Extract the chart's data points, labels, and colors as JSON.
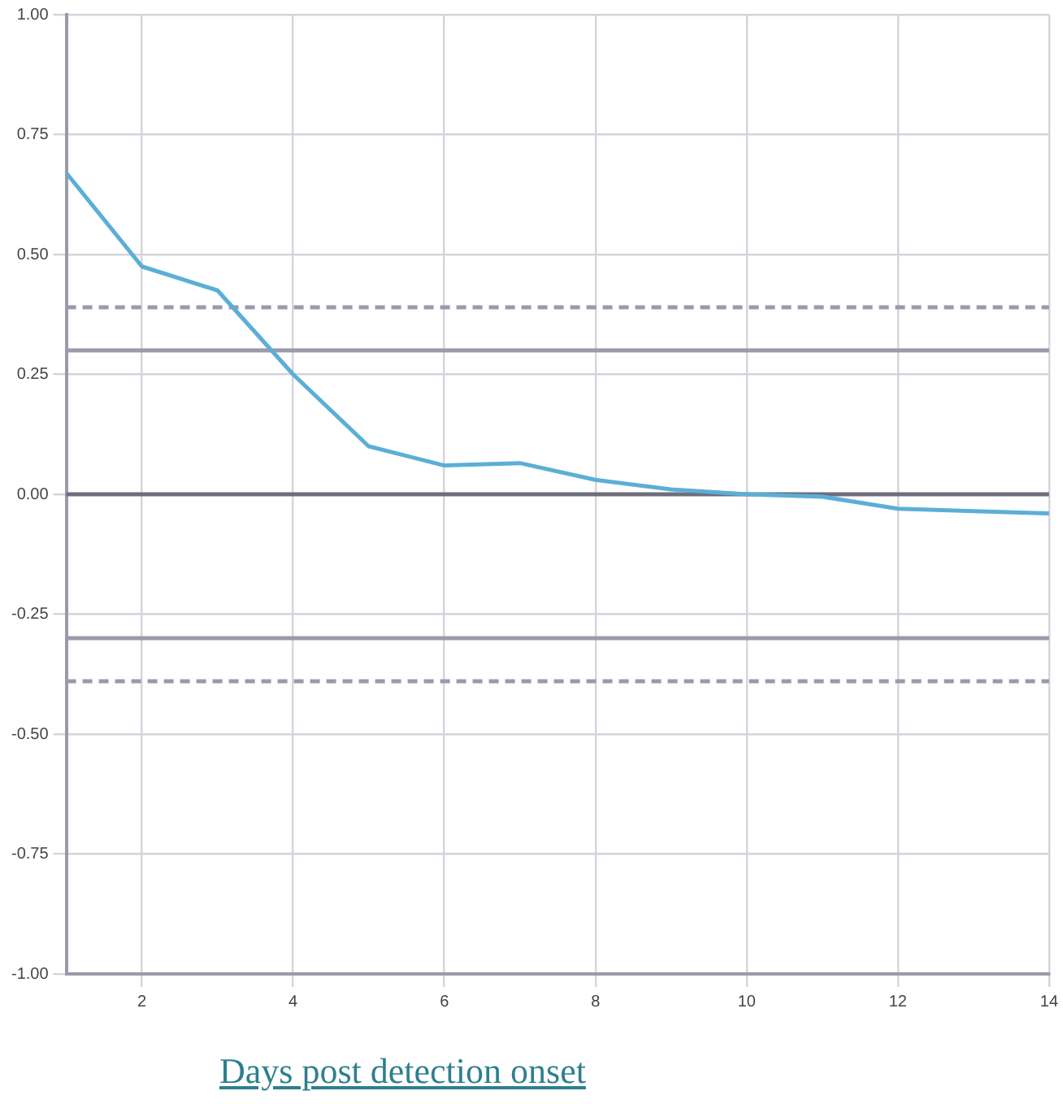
{
  "chart_data": {
    "type": "line",
    "xlabel": "Days post detection onset",
    "x": [
      1,
      2,
      3,
      4,
      5,
      6,
      7,
      8,
      9,
      10,
      11,
      12,
      13,
      14
    ],
    "series": [
      {
        "color": "#5bafd6",
        "values": [
          0.67,
          0.475,
          0.425,
          0.25,
          0.1,
          0.06,
          0.065,
          0.03,
          0.01,
          0.0,
          -0.005,
          -0.03,
          -0.035,
          -0.04
        ]
      }
    ],
    "xlim": [
      1,
      14
    ],
    "xticks": [
      2,
      4,
      6,
      8,
      10,
      12,
      14
    ],
    "ylim": [
      -1,
      1
    ],
    "yticks": [
      {
        "value": -1,
        "label": "-1.00"
      },
      {
        "value": -0.75,
        "label": "-0.75"
      },
      {
        "value": -0.5,
        "label": "-0.50"
      },
      {
        "value": -0.25,
        "label": "-0.25"
      },
      {
        "value": 0,
        "label": "0.00"
      },
      {
        "value": 0.25,
        "label": "0.25"
      },
      {
        "value": 0.5,
        "label": "0.50"
      },
      {
        "value": 0.75,
        "label": "0.75"
      },
      {
        "value": 1,
        "label": "1.00"
      }
    ],
    "ref_lines": [
      {
        "axis": "y",
        "value": 0,
        "color": "#6e6e7e",
        "line_style": "solid"
      },
      {
        "axis": "y",
        "value": 0.3,
        "color": "#9a9aaa",
        "line_style": "solid"
      },
      {
        "axis": "y",
        "value": -0.3,
        "color": "#9a9aaa",
        "line_style": "solid"
      },
      {
        "axis": "y",
        "value": 0.39,
        "color": "#9a9aaa",
        "line_style": "dashed"
      },
      {
        "axis": "y",
        "value": -0.39,
        "color": "#9a9aaa",
        "line_style": "dashed"
      }
    ],
    "grid": true,
    "marker": "none",
    "line_style": "solid",
    "legend": false
  }
}
